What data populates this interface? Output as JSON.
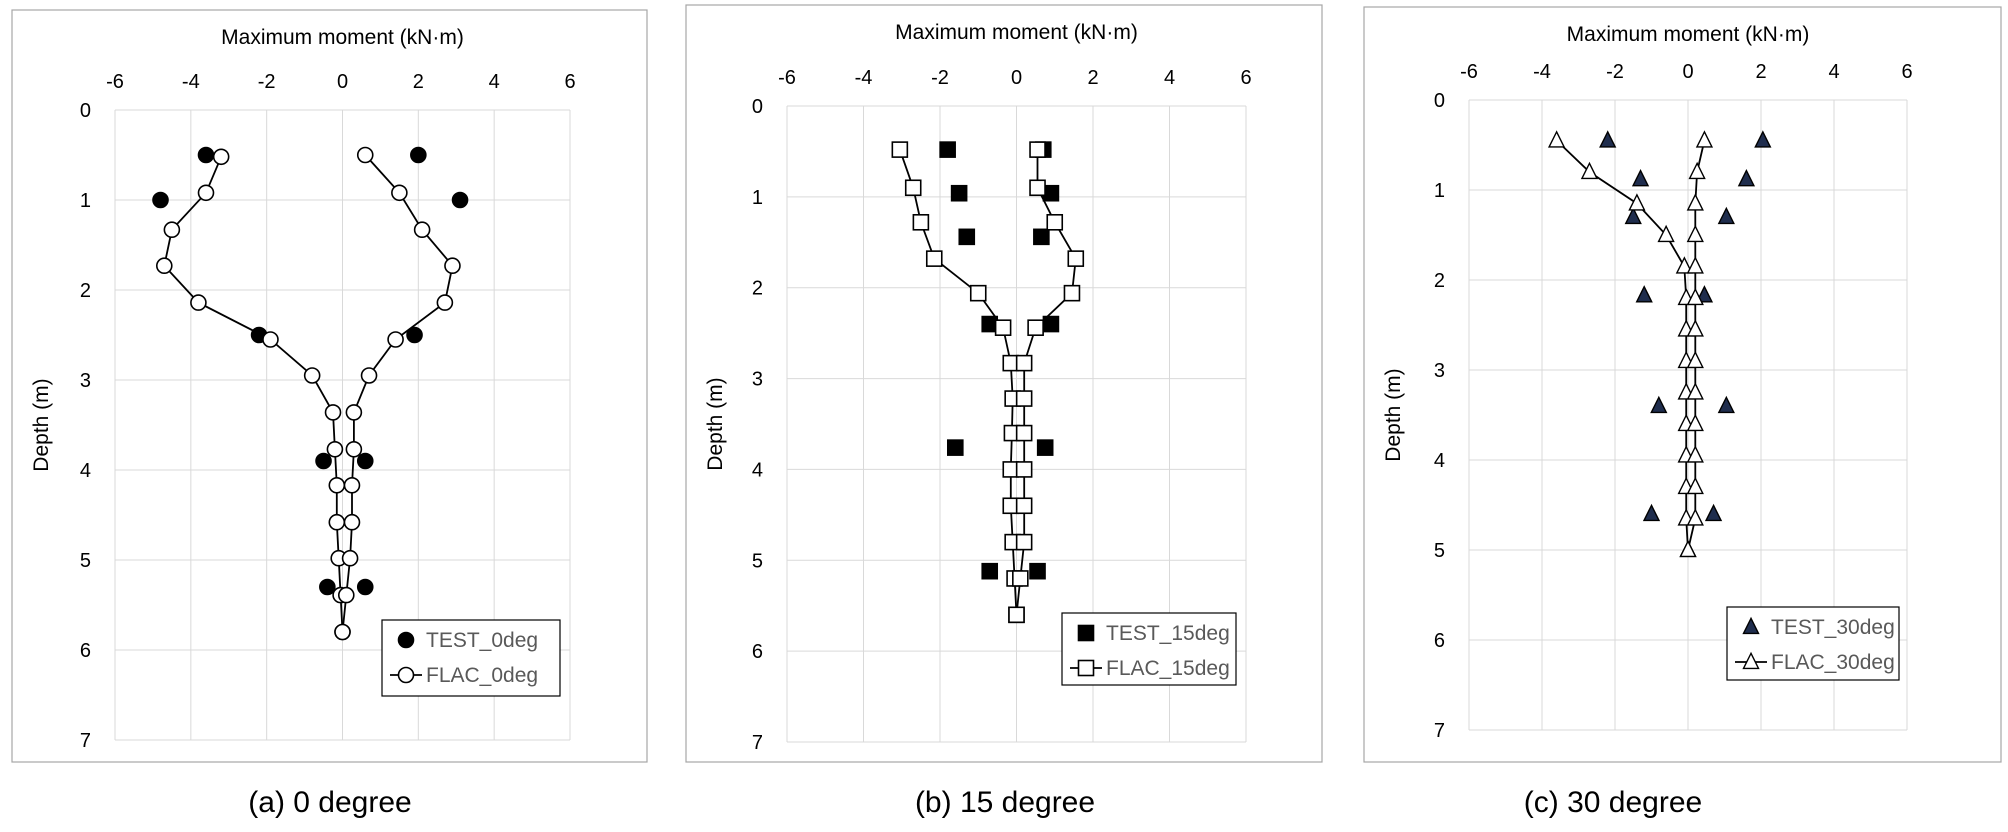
{
  "chart_data": [
    {
      "type": "scatter",
      "caption": "(a) 0 degree",
      "xlabel": "Maximum moment (kN·m)",
      "ylabel": "Depth (m)",
      "xlim": [
        -6,
        6
      ],
      "ylim": [
        0,
        7
      ],
      "y_inverted": true,
      "x_axis_position": "top",
      "xticks": [
        "-6",
        "-4",
        "-2",
        "0",
        "2",
        "4",
        "6"
      ],
      "yticks": [
        "0",
        "1",
        "2",
        "3",
        "4",
        "5",
        "6",
        "7"
      ],
      "grid": true,
      "legend_position": "bottom-right",
      "series": [
        {
          "name": "TEST_0deg",
          "marker": "filled-circle",
          "line": false,
          "color": "#000000",
          "points": [
            [
              -3.6,
              0.5
            ],
            [
              2.0,
              0.5
            ],
            [
              -4.8,
              1.0
            ],
            [
              3.1,
              1.0
            ],
            [
              -2.2,
              2.5
            ],
            [
              1.9,
              2.5
            ],
            [
              -0.5,
              3.9
            ],
            [
              0.6,
              3.9
            ],
            [
              -0.4,
              5.3
            ],
            [
              0.6,
              5.3
            ]
          ]
        },
        {
          "name": "FLAC_0deg",
          "marker": "open-circle",
          "line": true,
          "color": "#000000",
          "branches": [
            [
              [
                -3.2,
                0.52
              ],
              [
                -3.6,
                0.92
              ],
              [
                -4.5,
                1.33
              ],
              [
                -4.7,
                1.73
              ],
              [
                -3.8,
                2.14
              ],
              [
                -1.9,
                2.55
              ],
              [
                -0.8,
                2.95
              ],
              [
                -0.25,
                3.36
              ],
              [
                -0.2,
                3.77
              ],
              [
                -0.15,
                4.17
              ],
              [
                -0.15,
                4.58
              ],
              [
                -0.1,
                4.98
              ],
              [
                -0.05,
                5.39
              ],
              [
                0.0,
                5.8
              ]
            ],
            [
              [
                0.6,
                0.5
              ],
              [
                1.5,
                0.92
              ],
              [
                2.1,
                1.33
              ],
              [
                2.9,
                1.73
              ],
              [
                2.7,
                2.14
              ],
              [
                1.4,
                2.55
              ],
              [
                0.7,
                2.95
              ],
              [
                0.3,
                3.36
              ],
              [
                0.3,
                3.77
              ],
              [
                0.25,
                4.17
              ],
              [
                0.25,
                4.58
              ],
              [
                0.2,
                4.98
              ],
              [
                0.1,
                5.39
              ],
              [
                0.0,
                5.8
              ]
            ]
          ]
        }
      ]
    },
    {
      "type": "scatter",
      "caption": "(b) 15 degree",
      "xlabel": "Maximum moment (kN·m)",
      "ylabel": "Depth (m)",
      "xlim": [
        -6,
        6
      ],
      "ylim": [
        0,
        7
      ],
      "y_inverted": true,
      "x_axis_position": "top",
      "xticks": [
        "-6",
        "-4",
        "-2",
        "0",
        "2",
        "4",
        "6"
      ],
      "yticks": [
        "0",
        "1",
        "2",
        "3",
        "4",
        "5",
        "6",
        "7"
      ],
      "grid": true,
      "legend_position": "bottom-right",
      "series": [
        {
          "name": "TEST_15deg",
          "marker": "filled-square",
          "line": false,
          "color": "#000000",
          "points": [
            [
              -1.8,
              0.48
            ],
            [
              0.7,
              0.48
            ],
            [
              -1.5,
              0.96
            ],
            [
              0.9,
              0.96
            ],
            [
              -1.3,
              1.44
            ],
            [
              0.65,
              1.44
            ],
            [
              -0.7,
              2.4
            ],
            [
              0.9,
              2.4
            ],
            [
              -1.6,
              3.76
            ],
            [
              0.75,
              3.76
            ],
            [
              -0.7,
              5.12
            ],
            [
              0.55,
              5.12
            ]
          ]
        },
        {
          "name": "FLAC_15deg",
          "marker": "open-square",
          "line": true,
          "color": "#000000",
          "branches": [
            [
              [
                -3.05,
                0.48
              ],
              [
                -2.7,
                0.9
              ],
              [
                -2.5,
                1.28
              ],
              [
                -2.15,
                1.68
              ],
              [
                -1.0,
                2.06
              ],
              [
                -0.35,
                2.44
              ],
              [
                -0.15,
                2.83
              ],
              [
                -0.1,
                3.22
              ],
              [
                -0.12,
                3.6
              ],
              [
                -0.15,
                4.0
              ],
              [
                -0.15,
                4.4
              ],
              [
                -0.1,
                4.8
              ],
              [
                -0.05,
                5.2
              ],
              [
                0.0,
                5.6
              ]
            ],
            [
              [
                0.55,
                0.48
              ],
              [
                0.55,
                0.9
              ],
              [
                1.0,
                1.28
              ],
              [
                1.55,
                1.68
              ],
              [
                1.45,
                2.06
              ],
              [
                0.5,
                2.44
              ],
              [
                0.2,
                2.83
              ],
              [
                0.2,
                3.22
              ],
              [
                0.2,
                3.6
              ],
              [
                0.2,
                4.0
              ],
              [
                0.2,
                4.4
              ],
              [
                0.2,
                4.8
              ],
              [
                0.1,
                5.2
              ],
              [
                0.0,
                5.6
              ]
            ]
          ]
        }
      ]
    },
    {
      "type": "scatter",
      "caption": "(c) 30 degree",
      "xlabel": "Maximum moment (kN·m)",
      "ylabel": "Depth (m)",
      "xlim": [
        -6,
        6
      ],
      "ylim": [
        0,
        7
      ],
      "y_inverted": true,
      "x_axis_position": "top",
      "xticks": [
        "-6",
        "-4",
        "-2",
        "0",
        "2",
        "4",
        "6"
      ],
      "yticks": [
        "0",
        "1",
        "2",
        "3",
        "4",
        "5",
        "6",
        "7"
      ],
      "grid": true,
      "legend_position": "bottom-right",
      "series": [
        {
          "name": "TEST_30deg",
          "marker": "filled-triangle",
          "line": false,
          "color": "#000000",
          "fill": "#1f2d4d",
          "points": [
            [
              -2.2,
              0.45
            ],
            [
              2.05,
              0.45
            ],
            [
              -1.3,
              0.88
            ],
            [
              1.6,
              0.88
            ],
            [
              -1.5,
              1.3
            ],
            [
              1.05,
              1.3
            ],
            [
              -1.2,
              2.17
            ],
            [
              0.45,
              2.17
            ],
            [
              -0.8,
              3.4
            ],
            [
              1.05,
              3.4
            ],
            [
              -1.0,
              4.6
            ],
            [
              0.7,
              4.6
            ]
          ]
        },
        {
          "name": "FLAC_30deg",
          "marker": "open-triangle",
          "line": true,
          "color": "#000000",
          "branches": [
            [
              [
                -3.6,
                0.45
              ],
              [
                -2.7,
                0.8
              ],
              [
                -1.4,
                1.15
              ],
              [
                -0.6,
                1.5
              ],
              [
                -0.1,
                1.85
              ],
              [
                -0.05,
                2.2
              ],
              [
                -0.05,
                2.55
              ],
              [
                -0.05,
                2.9
              ],
              [
                -0.05,
                3.25
              ],
              [
                -0.05,
                3.6
              ],
              [
                -0.05,
                3.95
              ],
              [
                -0.05,
                4.3
              ],
              [
                -0.05,
                4.65
              ],
              [
                0.0,
                5.0
              ]
            ],
            [
              [
                0.45,
                0.45
              ],
              [
                0.25,
                0.8
              ],
              [
                0.2,
                1.15
              ],
              [
                0.2,
                1.5
              ],
              [
                0.2,
                1.85
              ],
              [
                0.2,
                2.2
              ],
              [
                0.2,
                2.55
              ],
              [
                0.2,
                2.9
              ],
              [
                0.2,
                3.25
              ],
              [
                0.2,
                3.6
              ],
              [
                0.2,
                3.95
              ],
              [
                0.2,
                4.3
              ],
              [
                0.2,
                4.65
              ],
              [
                0.0,
                5.0
              ]
            ]
          ]
        }
      ]
    }
  ]
}
